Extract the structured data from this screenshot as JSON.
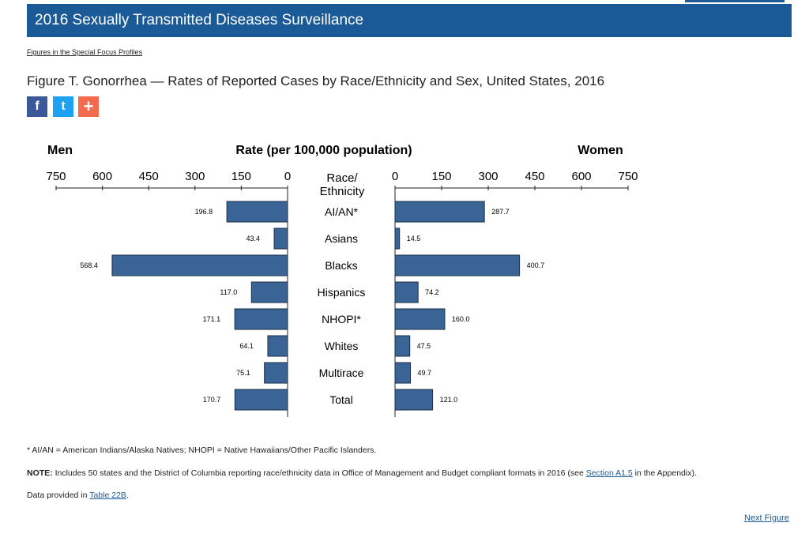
{
  "header": {
    "title": "2016 Sexually Transmitted Diseases Surveillance"
  },
  "breadcrumb": {
    "label": "Figures in the Special Focus Profiles"
  },
  "figure": {
    "title": "Figure T. Gonorrhea — Rates of Reported Cases by Race/Ethnicity and Sex, United States, 2016"
  },
  "share": {
    "facebook": "f",
    "twitter": "t",
    "more": "+"
  },
  "colors": {
    "bar": "#3a6496",
    "bar_stroke": "#1b2f4a",
    "banner": "#1a5a97"
  },
  "chart_data": {
    "type": "bar",
    "orientation": "horizontal-butterfly",
    "title": "Rate (per 100,000 population)",
    "left_label": "Men",
    "right_label": "Women",
    "center_header": [
      "Race/",
      "Ethnicity"
    ],
    "categories": [
      "AI/AN*",
      "Asians",
      "Blacks",
      "Hispanics",
      "NHOPI*",
      "Whites",
      "Multirace",
      "Total"
    ],
    "series": [
      {
        "name": "Men",
        "values": [
          196.8,
          43.4,
          568.4,
          117.0,
          171.1,
          64.1,
          75.1,
          170.7
        ]
      },
      {
        "name": "Women",
        "values": [
          287.7,
          14.5,
          400.7,
          74.2,
          160.0,
          47.5,
          49.7,
          121.0
        ]
      }
    ],
    "value_labels": {
      "Men": [
        "196.8",
        "43.4",
        "568.4",
        "117.0",
        "171.1",
        "64.1",
        "75.1",
        "170.7"
      ],
      "Women": [
        "287.7",
        "14.5",
        "400.7",
        "74.2",
        "160.0",
        "47.5",
        "49.7",
        "121.0"
      ]
    },
    "ticks": [
      0,
      150,
      300,
      450,
      600,
      750
    ],
    "xlim": [
      0,
      750
    ]
  },
  "footnotes": {
    "abbrev": "* AI/AN = American Indians/Alaska Natives; NHOPI = Native Hawaiians/Other Pacific Islanders.",
    "note_label": "NOTE:",
    "note_text_1": " Includes 50 states and the District of Columbia reporting race/ethnicity data in Office of Management and Budget compliant formats in 2016 (see ",
    "note_link": "Section A1.5",
    "note_text_2": " in the Appendix).",
    "data_text": "Data provided in ",
    "data_link": "Table 22B",
    "data_end": "."
  },
  "nav": {
    "next": "Next Figure"
  }
}
